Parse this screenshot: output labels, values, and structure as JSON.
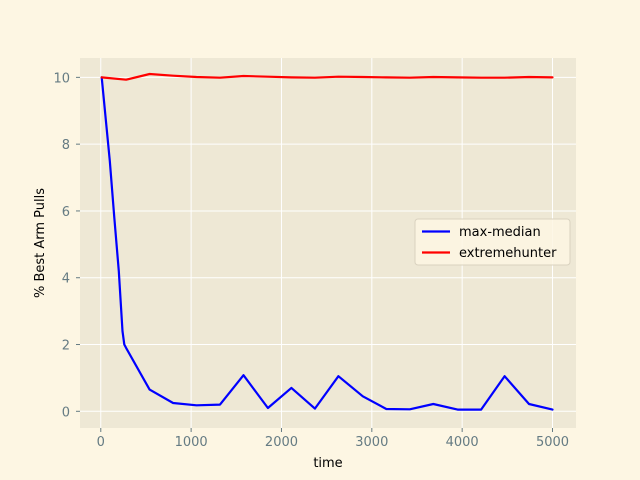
{
  "colors": {
    "figure_bg": "#fdf6e3",
    "axes_bg": "#eee8d5",
    "grid": "#ffffff",
    "tick_text": "#657b83",
    "label_text": "#000000"
  },
  "chart_data": {
    "type": "line",
    "title": "",
    "xlabel": "time",
    "ylabel": "% Best Arm Pulls",
    "xlim": [
      -230,
      5260
    ],
    "ylim": [
      -0.5,
      10.58
    ],
    "xticks": [
      0,
      1000,
      2000,
      3000,
      4000,
      5000
    ],
    "yticks": [
      0,
      2,
      4,
      6,
      8,
      10
    ],
    "xtick_labels": [
      "0",
      "1000",
      "2000",
      "3000",
      "4000",
      "5000"
    ],
    "ytick_labels": [
      "0",
      "2",
      "4",
      "6",
      "8",
      "10"
    ],
    "grid": true,
    "legend": "center-right",
    "series": [
      {
        "name": "max-median",
        "color": "#0000ff",
        "x": [
          10,
          100,
          150,
          200,
          240,
          260,
          280,
          540,
          800,
          1060,
          1320,
          1580,
          1850,
          2110,
          2370,
          2630,
          2900,
          3160,
          3420,
          3680,
          3950,
          4210,
          4470,
          4740,
          5000
        ],
        "y": [
          10.0,
          7.5,
          5.8,
          4.2,
          2.4,
          2.0,
          1.9,
          0.65,
          0.25,
          0.18,
          0.2,
          1.08,
          0.1,
          0.7,
          0.08,
          1.05,
          0.45,
          0.07,
          0.06,
          0.22,
          0.05,
          0.05,
          1.05,
          0.22,
          0.05
        ]
      },
      {
        "name": "extremehunter",
        "color": "#ff0000",
        "x": [
          10,
          280,
          540,
          800,
          1060,
          1320,
          1580,
          1850,
          2110,
          2370,
          2630,
          2900,
          3160,
          3420,
          3680,
          3950,
          4210,
          4470,
          4740,
          5000
        ],
        "y": [
          10.0,
          9.93,
          10.1,
          10.05,
          10.01,
          9.99,
          10.04,
          10.02,
          10.0,
          9.99,
          10.02,
          10.01,
          10.0,
          9.99,
          10.01,
          10.0,
          9.99,
          9.99,
          10.01,
          10.0
        ]
      }
    ]
  }
}
